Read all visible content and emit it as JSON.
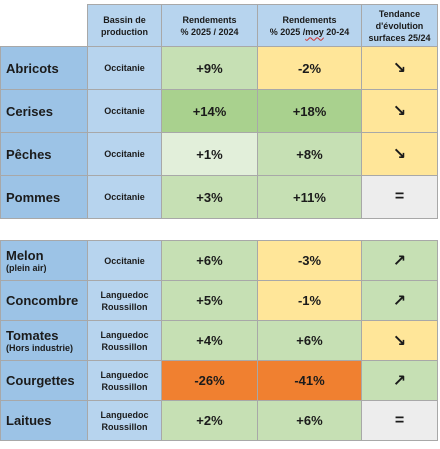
{
  "header": {
    "col1": "",
    "col2_line1": "Bassin de",
    "col2_line2": "production",
    "col3_line1": "Rendements",
    "col3_line2": "% 2025 / 2024",
    "col4_line1": "Rendements",
    "col4_line2_pre": "% 2025 /",
    "col4_line2_mid": "moy",
    "col4_line2_post": " 20-24",
    "col5_line1": "Tendance",
    "col5_line2": "d'évolution",
    "col5_line3": "surfaces 25/24"
  },
  "fruits": [
    {
      "name": "Abricots",
      "basin_line1": "Occitanie",
      "basin_line2": "",
      "vs2024": "+9%",
      "vs_avg": "-2%",
      "trend": "↘",
      "color_vs2024": "#c6e0b4",
      "color_vs_avg": "#ffe699",
      "color_trend": "#ffe699"
    },
    {
      "name": "Cerises",
      "basin_line1": "Occitanie",
      "basin_line2": "",
      "vs2024": "+14%",
      "vs_avg": "+18%",
      "trend": "↘",
      "color_vs2024": "#a9d18e",
      "color_vs_avg": "#a9d18e",
      "color_trend": "#ffe699"
    },
    {
      "name": "Pêches",
      "basin_line1": "Occitanie",
      "basin_line2": "",
      "vs2024": "+1%",
      "vs_avg": "+8%",
      "trend": "↘",
      "color_vs2024": "#e2efda",
      "color_vs_avg": "#c6e0b4",
      "color_trend": "#ffe699"
    },
    {
      "name": "Pommes",
      "basin_line1": "Occitanie",
      "basin_line2": "",
      "vs2024": "+3%",
      "vs_avg": "+11%",
      "trend": "=",
      "color_vs2024": "#c6e0b4",
      "color_vs_avg": "#c6e0b4",
      "color_trend": "#ededed"
    }
  ],
  "vegetables": [
    {
      "name": "Melon",
      "name_sub": "(plein air)",
      "basin_line1": "Occitanie",
      "basin_line2": "",
      "vs2024": "+6%",
      "vs_avg": "-3%",
      "trend": "↗",
      "color_vs2024": "#c6e0b4",
      "color_vs_avg": "#ffe699",
      "color_trend": "#c6e0b4"
    },
    {
      "name": "Concombre",
      "name_sub": "",
      "basin_line1": "Languedoc",
      "basin_line2": "Roussillon",
      "vs2024": "+5%",
      "vs_avg": "-1%",
      "trend": "↗",
      "color_vs2024": "#c6e0b4",
      "color_vs_avg": "#ffe699",
      "color_trend": "#c6e0b4"
    },
    {
      "name": "Tomates",
      "name_sub": "(Hors industrie)",
      "basin_line1": "Languedoc",
      "basin_line2": "Roussillon",
      "vs2024": "+4%",
      "vs_avg": "+6%",
      "trend": "↘",
      "color_vs2024": "#c6e0b4",
      "color_vs_avg": "#c6e0b4",
      "color_trend": "#ffe699"
    },
    {
      "name": "Courgettes",
      "name_sub": "",
      "basin_line1": "Languedoc",
      "basin_line2": "Roussillon",
      "vs2024": "-26%",
      "vs_avg": "-41%",
      "trend": "↗",
      "color_vs2024": "#f08030",
      "color_vs_avg": "#f08030",
      "color_trend": "#c6e0b4"
    },
    {
      "name": "Laitues",
      "name_sub": "",
      "basin_line1": "Languedoc",
      "basin_line2": "Roussillon",
      "vs2024": "+2%",
      "vs_avg": "+6%",
      "trend": "=",
      "color_vs2024": "#c6e0b4",
      "color_vs_avg": "#c6e0b4",
      "color_trend": "#ededed"
    }
  ]
}
